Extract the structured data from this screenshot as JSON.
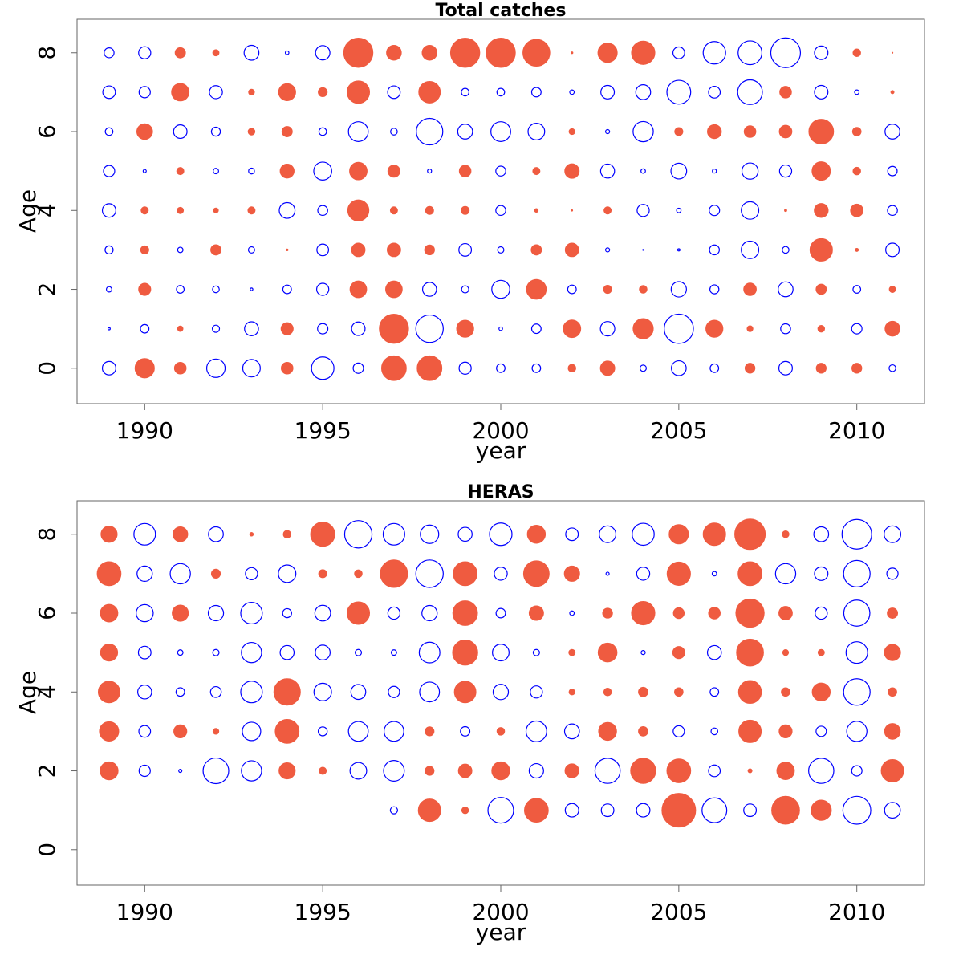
{
  "chart_data": [
    {
      "type": "scatter",
      "subtype": "bubble",
      "title": "Total catches",
      "xlabel": "year",
      "ylabel": "Age",
      "xlim": [
        1988.1,
        2011.9
      ],
      "ylim": [
        -0.9,
        8.85
      ],
      "xticks": [
        1990,
        1995,
        2000,
        2005,
        2010
      ],
      "yticks": [
        0,
        2,
        4,
        6,
        8
      ],
      "x": [
        1989,
        1990,
        1991,
        1992,
        1993,
        1994,
        1995,
        1996,
        1997,
        1998,
        1999,
        2000,
        2001,
        2002,
        2003,
        2004,
        2005,
        2006,
        2007,
        2008,
        2009,
        2010,
        2011
      ],
      "ages": [
        0,
        1,
        2,
        3,
        4,
        5,
        6,
        7,
        8
      ],
      "positive_color": "#EF5B40",
      "negative_color": "#0000FF",
      "legend": "none",
      "grid": false,
      "values": [
        [
          -0.3,
          0.43,
          0.26,
          -0.41,
          -0.39,
          0.26,
          -0.5,
          -0.23,
          0.55,
          0.55,
          -0.27,
          -0.19,
          -0.19,
          0.17,
          0.32,
          -0.14,
          -0.33,
          -0.19,
          0.22,
          -0.3,
          0.22,
          0.22,
          -0.15
        ],
        [
          -0.05,
          -0.19,
          0.12,
          -0.16,
          -0.31,
          0.27,
          -0.23,
          -0.3,
          0.65,
          -0.61,
          0.38,
          -0.08,
          -0.21,
          0.39,
          -0.32,
          0.45,
          -0.65,
          0.38,
          0.13,
          -0.22,
          0.15,
          -0.23,
          0.33
        ],
        [
          -0.12,
          0.27,
          -0.17,
          -0.15,
          -0.06,
          -0.19,
          -0.27,
          0.37,
          0.37,
          -0.31,
          -0.16,
          -0.4,
          0.44,
          -0.19,
          0.18,
          0.17,
          -0.34,
          -0.2,
          0.28,
          -0.33,
          0.23,
          -0.17,
          0.14
        ],
        [
          -0.18,
          0.18,
          -0.12,
          0.23,
          -0.14,
          0.04,
          -0.26,
          0.3,
          0.3,
          0.22,
          -0.28,
          -0.14,
          0.23,
          0.3,
          -0.09,
          -0.02,
          -0.05,
          -0.22,
          -0.39,
          -0.15,
          0.5,
          0.07,
          -0.3
        ],
        [
          -0.3,
          0.16,
          0.14,
          0.11,
          0.16,
          -0.35,
          -0.22,
          0.47,
          0.16,
          0.18,
          0.18,
          -0.22,
          0.08,
          0.03,
          0.16,
          -0.27,
          -0.1,
          -0.23,
          -0.39,
          0.05,
          0.31,
          0.28,
          -0.22
        ],
        [
          -0.25,
          -0.07,
          0.16,
          -0.12,
          -0.13,
          0.31,
          -0.4,
          0.39,
          0.27,
          -0.09,
          0.26,
          -0.22,
          0.16,
          0.32,
          -0.31,
          -0.1,
          -0.35,
          -0.09,
          -0.36,
          -0.27,
          0.41,
          0.17,
          -0.21
        ],
        [
          -0.17,
          0.35,
          -0.3,
          -0.2,
          0.15,
          0.23,
          -0.17,
          -0.44,
          -0.15,
          -0.59,
          -0.33,
          -0.44,
          -0.37,
          0.13,
          -0.09,
          -0.45,
          0.18,
          0.31,
          0.26,
          0.28,
          0.55,
          0.19,
          -0.33
        ],
        [
          -0.28,
          -0.25,
          0.39,
          -0.29,
          0.13,
          0.38,
          0.2,
          0.5,
          -0.28,
          0.48,
          -0.17,
          -0.17,
          -0.21,
          -0.1,
          -0.3,
          -0.33,
          -0.53,
          -0.26,
          -0.55,
          0.26,
          -0.3,
          -0.1,
          0.07
        ],
        [
          -0.22,
          -0.27,
          0.23,
          0.14,
          -0.33,
          -0.08,
          -0.32,
          0.65,
          0.33,
          0.33,
          0.65,
          0.65,
          0.6,
          0.04,
          0.43,
          0.52,
          -0.26,
          -0.5,
          -0.53,
          -0.66,
          -0.3,
          0.17,
          0.01
        ]
      ]
    },
    {
      "type": "scatter",
      "subtype": "bubble",
      "title": "HERAS",
      "xlabel": "year",
      "ylabel": "Age",
      "xlim": [
        1988.1,
        2011.9
      ],
      "ylim": [
        -0.9,
        8.85
      ],
      "xticks": [
        1990,
        1995,
        2000,
        2005,
        2010
      ],
      "yticks": [
        0,
        2,
        4,
        6,
        8
      ],
      "x": [
        1989,
        1990,
        1991,
        1992,
        1993,
        1994,
        1995,
        1996,
        1997,
        1998,
        1999,
        2000,
        2001,
        2002,
        2003,
        2004,
        2005,
        2006,
        2007,
        2008,
        2009,
        2010,
        2011
      ],
      "ages": [
        0,
        1,
        2,
        3,
        4,
        5,
        6,
        7,
        8
      ],
      "positive_color": "#EF5B40",
      "negative_color": "#0000FF",
      "legend": "none",
      "grid": false,
      "values": [
        [
          null,
          null,
          null,
          null,
          null,
          null,
          null,
          null,
          null,
          null,
          null,
          null,
          null,
          null,
          null,
          null,
          null,
          null,
          null,
          null,
          null,
          null,
          null
        ],
        [
          null,
          null,
          null,
          null,
          null,
          null,
          null,
          null,
          -0.16,
          0.5,
          0.15,
          -0.57,
          0.53,
          -0.3,
          -0.28,
          -0.3,
          0.75,
          -0.55,
          -0.28,
          0.62,
          0.45,
          -0.62,
          -0.35
        ],
        [
          0.4,
          -0.25,
          -0.07,
          -0.57,
          -0.45,
          0.36,
          0.16,
          -0.37,
          -0.46,
          0.2,
          0.3,
          0.4,
          -0.32,
          0.31,
          -0.56,
          0.56,
          0.53,
          -0.26,
          0.09,
          0.39,
          -0.56,
          -0.23,
          0.5
        ],
        [
          0.43,
          -0.26,
          0.29,
          0.13,
          -0.41,
          0.53,
          -0.2,
          -0.44,
          -0.44,
          0.2,
          -0.21,
          0.17,
          -0.46,
          -0.33,
          0.4,
          0.21,
          -0.25,
          -0.15,
          0.5,
          0.29,
          -0.23,
          -0.45,
          0.35
        ],
        [
          0.48,
          -0.31,
          -0.19,
          -0.24,
          -0.48,
          0.59,
          -0.39,
          -0.33,
          -0.25,
          -0.44,
          0.48,
          -0.34,
          -0.27,
          0.13,
          0.17,
          0.21,
          0.19,
          -0.19,
          0.51,
          0.19,
          0.4,
          -0.59,
          0.19
        ],
        [
          0.38,
          -0.28,
          -0.12,
          -0.14,
          -0.45,
          -0.31,
          -0.33,
          -0.14,
          -0.12,
          -0.46,
          0.56,
          -0.37,
          -0.14,
          0.14,
          0.42,
          -0.09,
          0.27,
          -0.31,
          0.6,
          0.13,
          0.14,
          -0.48,
          0.36
        ],
        [
          0.39,
          -0.38,
          0.36,
          -0.34,
          -0.48,
          -0.2,
          -0.35,
          0.5,
          -0.27,
          -0.34,
          0.55,
          -0.21,
          0.32,
          -0.1,
          0.22,
          0.52,
          0.24,
          0.26,
          0.63,
          0.3,
          -0.27,
          -0.58,
          0.23
        ],
        [
          0.53,
          -0.34,
          -0.45,
          0.2,
          -0.27,
          -0.39,
          0.18,
          0.17,
          0.61,
          -0.61,
          0.53,
          -0.29,
          0.57,
          0.34,
          -0.07,
          -0.29,
          0.52,
          -0.1,
          0.53,
          -0.45,
          -0.3,
          -0.59,
          -0.25
        ],
        [
          0.36,
          -0.48,
          0.33,
          -0.33,
          0.08,
          0.17,
          0.54,
          -0.61,
          -0.48,
          -0.41,
          -0.31,
          -0.5,
          0.4,
          -0.28,
          -0.37,
          -0.49,
          0.43,
          0.5,
          0.68,
          0.15,
          -0.33,
          -0.66,
          -0.37
        ]
      ]
    }
  ]
}
